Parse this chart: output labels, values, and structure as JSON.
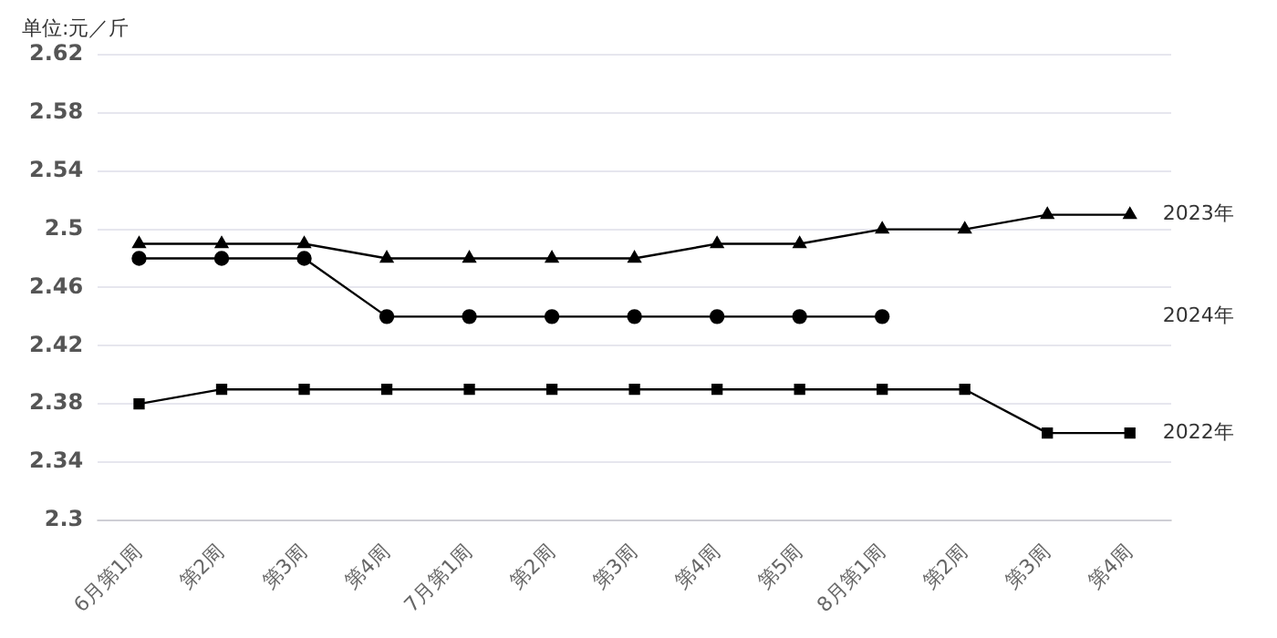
{
  "chart_data": {
    "type": "line",
    "ylabel": "单位:元／斤",
    "categories": [
      "6月第1周",
      "第2周",
      "第3周",
      "第4周",
      "7月第1周",
      "第2周",
      "第3周",
      "第4周",
      "第5周",
      "8月第1周",
      "第2周",
      "第3周",
      "第4周"
    ],
    "series": [
      {
        "name": "2023年",
        "color": "#000000",
        "marker": "triangle",
        "values": [
          2.49,
          2.49,
          2.49,
          2.48,
          2.48,
          2.48,
          2.48,
          2.49,
          2.49,
          2.5,
          2.5,
          2.51,
          2.51
        ]
      },
      {
        "name": "2024年",
        "color": "#000000",
        "marker": "circle",
        "values": [
          2.48,
          2.48,
          2.48,
          2.44,
          2.44,
          2.44,
          2.44,
          2.44,
          2.44,
          2.44,
          null,
          null,
          null
        ]
      },
      {
        "name": "2022年",
        "color": "#000000",
        "marker": "square",
        "values": [
          2.38,
          2.39,
          2.39,
          2.39,
          2.39,
          2.39,
          2.39,
          2.39,
          2.39,
          2.39,
          2.39,
          2.36,
          2.36
        ]
      }
    ],
    "ylim": [
      2.3,
      2.62
    ],
    "yticks": [
      2.3,
      2.34,
      2.38,
      2.42,
      2.46,
      2.5,
      2.54,
      2.58,
      2.62
    ],
    "grid": "y",
    "legend": false,
    "line_style": "solid"
  }
}
